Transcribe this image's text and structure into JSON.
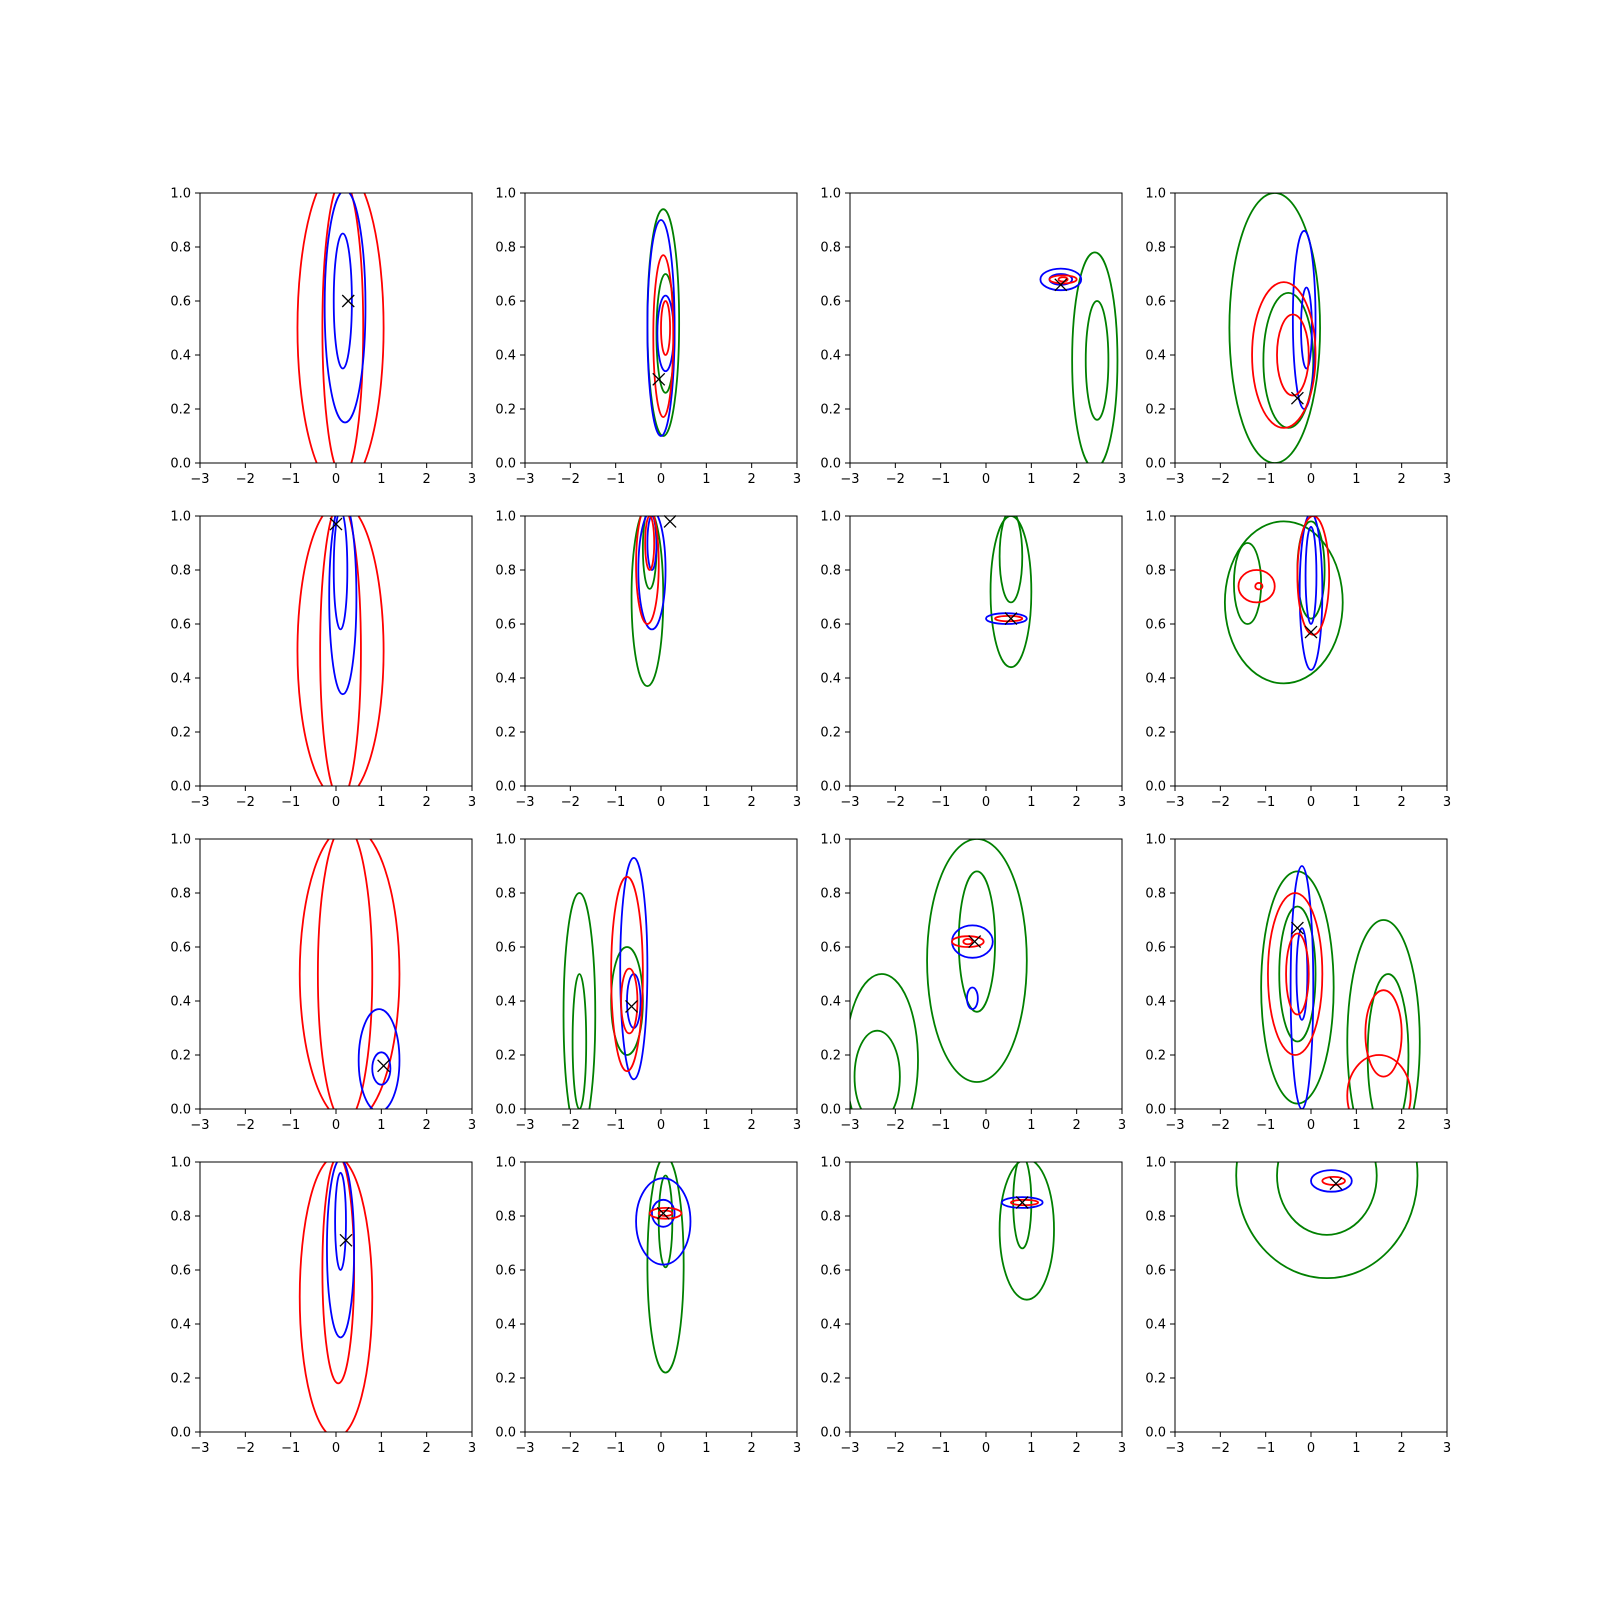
{
  "colors": {
    "series_a": "#0000ff",
    "series_b": "#ff0000",
    "series_c": "#008000",
    "marker": "#000000"
  },
  "chart_data": {
    "type": "contour",
    "layout": "4x4 grid",
    "xlim": [
      -3,
      3
    ],
    "ylim": [
      0,
      1
    ],
    "x_ticks": [
      "−3",
      "−2",
      "−1",
      "0",
      "1",
      "2",
      "3"
    ],
    "y_ticks": [
      "0.0",
      "0.2",
      "0.4",
      "0.6",
      "0.8",
      "1.0"
    ],
    "marker_symbol": "x",
    "panels": [
      {
        "marker": [
          0.27,
          0.6
        ],
        "contours": [
          {
            "color": "red",
            "cx": 0.1,
            "cy": 0.5,
            "rx": 0.95,
            "ry": 0.6
          },
          {
            "color": "red",
            "cx": 0.15,
            "cy": 0.5,
            "rx": 0.45,
            "ry": 0.55
          },
          {
            "color": "blue",
            "cx": 0.2,
            "cy": 0.58,
            "rx": 0.45,
            "ry": 0.43
          },
          {
            "color": "blue",
            "cx": 0.15,
            "cy": 0.6,
            "rx": 0.2,
            "ry": 0.25
          }
        ]
      },
      {
        "marker": [
          -0.05,
          0.31
        ],
        "contours": [
          {
            "color": "green",
            "cx": 0.05,
            "cy": 0.52,
            "rx": 0.35,
            "ry": 0.42
          },
          {
            "color": "green",
            "cx": 0.1,
            "cy": 0.48,
            "rx": 0.2,
            "ry": 0.22
          },
          {
            "color": "blue",
            "cx": 0.0,
            "cy": 0.5,
            "rx": 0.3,
            "ry": 0.4
          },
          {
            "color": "blue",
            "cx": 0.1,
            "cy": 0.48,
            "rx": 0.18,
            "ry": 0.14
          },
          {
            "color": "red",
            "cx": 0.05,
            "cy": 0.47,
            "rx": 0.22,
            "ry": 0.3
          },
          {
            "color": "red",
            "cx": 0.1,
            "cy": 0.5,
            "rx": 0.1,
            "ry": 0.1
          }
        ]
      },
      {
        "marker": [
          1.65,
          0.66
        ],
        "contours": [
          {
            "color": "green",
            "cx": 2.4,
            "cy": 0.38,
            "rx": 0.5,
            "ry": 0.4
          },
          {
            "color": "green",
            "cx": 2.45,
            "cy": 0.38,
            "rx": 0.25,
            "ry": 0.22
          },
          {
            "color": "blue",
            "cx": 1.65,
            "cy": 0.68,
            "rx": 0.45,
            "ry": 0.04
          },
          {
            "color": "blue",
            "cx": 1.65,
            "cy": 0.68,
            "rx": 0.25,
            "ry": 0.02
          },
          {
            "color": "red",
            "cx": 1.7,
            "cy": 0.68,
            "rx": 0.3,
            "ry": 0.015
          },
          {
            "color": "red",
            "cx": 1.7,
            "cy": 0.68,
            "rx": 0.1,
            "ry": 0.008
          }
        ]
      },
      {
        "marker": [
          -0.3,
          0.24
        ],
        "contours": [
          {
            "color": "green",
            "cx": -0.8,
            "cy": 0.5,
            "rx": 1.0,
            "ry": 0.5
          },
          {
            "color": "green",
            "cx": -0.5,
            "cy": 0.38,
            "rx": 0.55,
            "ry": 0.25
          },
          {
            "color": "blue",
            "cx": -0.15,
            "cy": 0.53,
            "rx": 0.25,
            "ry": 0.33
          },
          {
            "color": "blue",
            "cx": -0.1,
            "cy": 0.5,
            "rx": 0.12,
            "ry": 0.15
          },
          {
            "color": "red",
            "cx": -0.6,
            "cy": 0.4,
            "rx": 0.7,
            "ry": 0.27
          },
          {
            "color": "red",
            "cx": -0.4,
            "cy": 0.4,
            "rx": 0.35,
            "ry": 0.15
          }
        ]
      },
      {
        "marker": [
          0.0,
          0.97
        ],
        "contours": [
          {
            "color": "red",
            "cx": 0.1,
            "cy": 0.5,
            "rx": 0.95,
            "ry": 0.55
          },
          {
            "color": "red",
            "cx": 0.1,
            "cy": 0.5,
            "rx": 0.45,
            "ry": 0.55
          },
          {
            "color": "blue",
            "cx": 0.15,
            "cy": 0.7,
            "rx": 0.3,
            "ry": 0.36
          },
          {
            "color": "blue",
            "cx": 0.1,
            "cy": 0.8,
            "rx": 0.15,
            "ry": 0.22
          }
        ]
      },
      {
        "marker": [
          0.2,
          0.98
        ],
        "contours": [
          {
            "color": "green",
            "cx": -0.3,
            "cy": 0.7,
            "rx": 0.35,
            "ry": 0.33
          },
          {
            "color": "green",
            "cx": -0.25,
            "cy": 0.88,
            "rx": 0.15,
            "ry": 0.15
          },
          {
            "color": "blue",
            "cx": -0.2,
            "cy": 0.8,
            "rx": 0.3,
            "ry": 0.22
          },
          {
            "color": "blue",
            "cx": -0.2,
            "cy": 0.9,
            "rx": 0.1,
            "ry": 0.1
          },
          {
            "color": "red",
            "cx": -0.3,
            "cy": 0.82,
            "rx": 0.25,
            "ry": 0.22
          },
          {
            "color": "red",
            "cx": -0.25,
            "cy": 0.9,
            "rx": 0.1,
            "ry": 0.1
          }
        ]
      },
      {
        "marker": [
          0.55,
          0.62
        ],
        "contours": [
          {
            "color": "green",
            "cx": 0.55,
            "cy": 0.72,
            "rx": 0.45,
            "ry": 0.28
          },
          {
            "color": "green",
            "cx": 0.55,
            "cy": 0.85,
            "rx": 0.25,
            "ry": 0.17
          },
          {
            "color": "blue",
            "cx": 0.45,
            "cy": 0.62,
            "rx": 0.45,
            "ry": 0.02
          },
          {
            "color": "red",
            "cx": 0.5,
            "cy": 0.62,
            "rx": 0.3,
            "ry": 0.01
          }
        ]
      },
      {
        "marker": [
          0.0,
          0.57
        ],
        "contours": [
          {
            "color": "green",
            "cx": -0.6,
            "cy": 0.68,
            "rx": 1.3,
            "ry": 0.3
          },
          {
            "color": "green",
            "cx": -1.4,
            "cy": 0.75,
            "rx": 0.3,
            "ry": 0.15
          },
          {
            "color": "green",
            "cx": 0.0,
            "cy": 0.8,
            "rx": 0.3,
            "ry": 0.18
          },
          {
            "color": "blue",
            "cx": 0.0,
            "cy": 0.72,
            "rx": 0.25,
            "ry": 0.29
          },
          {
            "color": "blue",
            "cx": 0.0,
            "cy": 0.78,
            "rx": 0.12,
            "ry": 0.18
          },
          {
            "color": "red",
            "cx": -1.2,
            "cy": 0.74,
            "rx": 0.4,
            "ry": 0.06
          },
          {
            "color": "red",
            "cx": -1.15,
            "cy": 0.74,
            "rx": 0.08,
            "ry": 0.012
          },
          {
            "color": "red",
            "cx": 0.05,
            "cy": 0.78,
            "rx": 0.35,
            "ry": 0.22
          }
        ]
      },
      {
        "marker": [
          1.05,
          0.16
        ],
        "contours": [
          {
            "color": "red",
            "cx": 0.3,
            "cy": 0.5,
            "rx": 1.1,
            "ry": 0.55
          },
          {
            "color": "red",
            "cx": 0.2,
            "cy": 0.5,
            "rx": 0.6,
            "ry": 0.55
          },
          {
            "color": "blue",
            "cx": 0.95,
            "cy": 0.18,
            "rx": 0.45,
            "ry": 0.19
          },
          {
            "color": "blue",
            "cx": 1.0,
            "cy": 0.15,
            "rx": 0.2,
            "ry": 0.06
          }
        ]
      },
      {
        "marker": [
          -0.65,
          0.38
        ],
        "contours": [
          {
            "color": "green",
            "cx": -1.8,
            "cy": 0.35,
            "rx": 0.35,
            "ry": 0.45
          },
          {
            "color": "green",
            "cx": -1.8,
            "cy": 0.25,
            "rx": 0.15,
            "ry": 0.25
          },
          {
            "color": "green",
            "cx": -0.75,
            "cy": 0.4,
            "rx": 0.35,
            "ry": 0.2
          },
          {
            "color": "blue",
            "cx": -0.6,
            "cy": 0.52,
            "rx": 0.3,
            "ry": 0.41
          },
          {
            "color": "blue",
            "cx": -0.6,
            "cy": 0.4,
            "rx": 0.15,
            "ry": 0.1
          },
          {
            "color": "red",
            "cx": -0.75,
            "cy": 0.5,
            "rx": 0.35,
            "ry": 0.36
          },
          {
            "color": "red",
            "cx": -0.7,
            "cy": 0.4,
            "rx": 0.18,
            "ry": 0.12
          }
        ]
      },
      {
        "marker": [
          -0.25,
          0.62
        ],
        "contours": [
          {
            "color": "green",
            "cx": -2.3,
            "cy": 0.18,
            "rx": 0.8,
            "ry": 0.32
          },
          {
            "color": "green",
            "cx": -2.4,
            "cy": 0.12,
            "rx": 0.5,
            "ry": 0.17
          },
          {
            "color": "green",
            "cx": -0.2,
            "cy": 0.55,
            "rx": 1.1,
            "ry": 0.45
          },
          {
            "color": "green",
            "cx": -0.2,
            "cy": 0.62,
            "rx": 0.4,
            "ry": 0.26
          },
          {
            "color": "blue",
            "cx": -0.3,
            "cy": 0.62,
            "rx": 0.45,
            "ry": 0.06
          },
          {
            "color": "blue",
            "cx": -0.3,
            "cy": 0.41,
            "rx": 0.12,
            "ry": 0.04
          },
          {
            "color": "red",
            "cx": -0.4,
            "cy": 0.62,
            "rx": 0.35,
            "ry": 0.02
          },
          {
            "color": "red",
            "cx": -0.4,
            "cy": 0.62,
            "rx": 0.1,
            "ry": 0.01
          }
        ]
      },
      {
        "marker": [
          -0.3,
          0.67
        ],
        "contours": [
          {
            "color": "green",
            "cx": -0.3,
            "cy": 0.45,
            "rx": 0.8,
            "ry": 0.43
          },
          {
            "color": "green",
            "cx": -0.3,
            "cy": 0.5,
            "rx": 0.4,
            "ry": 0.25
          },
          {
            "color": "green",
            "cx": 1.6,
            "cy": 0.25,
            "rx": 0.8,
            "ry": 0.45
          },
          {
            "color": "green",
            "cx": 1.7,
            "cy": 0.2,
            "rx": 0.45,
            "ry": 0.3
          },
          {
            "color": "blue",
            "cx": -0.2,
            "cy": 0.45,
            "rx": 0.25,
            "ry": 0.45
          },
          {
            "color": "blue",
            "cx": -0.2,
            "cy": 0.5,
            "rx": 0.12,
            "ry": 0.17
          },
          {
            "color": "red",
            "cx": -0.35,
            "cy": 0.5,
            "rx": 0.6,
            "ry": 0.3
          },
          {
            "color": "red",
            "cx": -0.3,
            "cy": 0.5,
            "rx": 0.25,
            "ry": 0.15
          },
          {
            "color": "red",
            "cx": 1.5,
            "cy": 0.05,
            "rx": 0.7,
            "ry": 0.15
          },
          {
            "color": "red",
            "cx": 1.6,
            "cy": 0.28,
            "rx": 0.4,
            "ry": 0.16
          }
        ]
      },
      {
        "marker": [
          0.22,
          0.71
        ],
        "contours": [
          {
            "color": "red",
            "cx": 0.0,
            "cy": 0.5,
            "rx": 0.8,
            "ry": 0.52
          },
          {
            "color": "red",
            "cx": 0.05,
            "cy": 0.6,
            "rx": 0.35,
            "ry": 0.42
          },
          {
            "color": "blue",
            "cx": 0.1,
            "cy": 0.68,
            "rx": 0.3,
            "ry": 0.33
          },
          {
            "color": "blue",
            "cx": 0.1,
            "cy": 0.78,
            "rx": 0.12,
            "ry": 0.18
          }
        ]
      },
      {
        "marker": [
          0.05,
          0.81
        ],
        "contours": [
          {
            "color": "green",
            "cx": 0.1,
            "cy": 0.62,
            "rx": 0.4,
            "ry": 0.4
          },
          {
            "color": "green",
            "cx": 0.1,
            "cy": 0.78,
            "rx": 0.15,
            "ry": 0.17
          },
          {
            "color": "blue",
            "cx": 0.05,
            "cy": 0.78,
            "rx": 0.6,
            "ry": 0.16
          },
          {
            "color": "blue",
            "cx": 0.05,
            "cy": 0.81,
            "rx": 0.25,
            "ry": 0.05
          },
          {
            "color": "red",
            "cx": 0.1,
            "cy": 0.81,
            "rx": 0.35,
            "ry": 0.02
          },
          {
            "color": "red",
            "cx": 0.1,
            "cy": 0.81,
            "rx": 0.15,
            "ry": 0.01
          }
        ]
      },
      {
        "marker": [
          0.8,
          0.85
        ],
        "contours": [
          {
            "color": "green",
            "cx": 0.9,
            "cy": 0.75,
            "rx": 0.6,
            "ry": 0.26
          },
          {
            "color": "green",
            "cx": 0.8,
            "cy": 0.85,
            "rx": 0.2,
            "ry": 0.17
          },
          {
            "color": "blue",
            "cx": 0.8,
            "cy": 0.85,
            "rx": 0.45,
            "ry": 0.02
          },
          {
            "color": "red",
            "cx": 0.85,
            "cy": 0.85,
            "rx": 0.3,
            "ry": 0.01
          }
        ]
      },
      {
        "marker": [
          0.55,
          0.92
        ],
        "contours": [
          {
            "color": "green",
            "cx": 0.35,
            "cy": 0.95,
            "rx": 2.0,
            "ry": 0.38
          },
          {
            "color": "green",
            "cx": 0.35,
            "cy": 0.95,
            "rx": 1.1,
            "ry": 0.22
          },
          {
            "color": "blue",
            "cx": 0.45,
            "cy": 0.93,
            "rx": 0.45,
            "ry": 0.04
          },
          {
            "color": "red",
            "cx": 0.5,
            "cy": 0.93,
            "rx": 0.25,
            "ry": 0.015
          }
        ]
      }
    ]
  }
}
